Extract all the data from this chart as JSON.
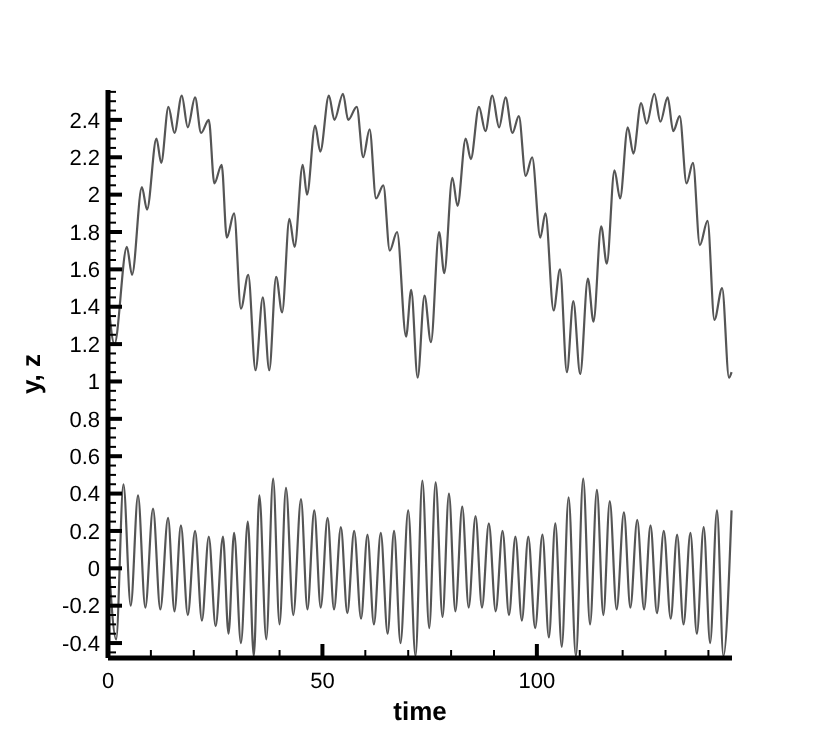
{
  "chart_data": {
    "type": "line",
    "xlabel": "time",
    "ylabel": "y, z",
    "xlim": [
      0,
      145.5
    ],
    "ylim": [
      -0.48,
      2.56
    ],
    "grid": false,
    "line_style": "solid",
    "xticks": [
      0,
      {
        "value": 10,
        "label": null
      },
      {
        "value": 20,
        "label": null
      },
      {
        "value": 30,
        "label": null
      },
      {
        "value": 40,
        "label": null
      },
      50,
      {
        "value": 60,
        "label": null
      },
      {
        "value": 70,
        "label": null
      },
      {
        "value": 80,
        "label": null
      },
      {
        "value": 90,
        "label": null
      },
      100,
      {
        "value": 110,
        "label": null
      },
      {
        "value": 120,
        "label": null
      },
      {
        "value": 130,
        "label": null
      },
      {
        "value": 140,
        "label": null
      }
    ],
    "yticks": [
      -0.4,
      -0.2,
      0,
      0.2,
      0.4,
      0.6,
      0.8,
      1,
      1.2,
      1.4,
      1.6,
      1.8,
      2,
      2.2,
      2.4,
      {
        "value": -0.45,
        "label": null
      },
      {
        "value": -0.35,
        "label": null
      },
      {
        "value": -0.3,
        "label": null
      },
      {
        "value": -0.25,
        "label": null
      },
      {
        "value": -0.15,
        "label": null
      },
      {
        "value": -0.1,
        "label": null
      },
      {
        "value": -0.05,
        "label": null
      },
      {
        "value": 0.05,
        "label": null
      },
      {
        "value": 0.1,
        "label": null
      },
      {
        "value": 0.15,
        "label": null
      },
      {
        "value": 0.25,
        "label": null
      },
      {
        "value": 0.3,
        "label": null
      },
      {
        "value": 0.35,
        "label": null
      },
      {
        "value": 0.45,
        "label": null
      },
      {
        "value": 0.5,
        "label": null
      },
      {
        "value": 0.55,
        "label": null
      },
      {
        "value": 0.65,
        "label": null
      },
      {
        "value": 0.7,
        "label": null
      },
      {
        "value": 0.75,
        "label": null
      },
      {
        "value": 0.85,
        "label": null
      },
      {
        "value": 0.9,
        "label": null
      },
      {
        "value": 0.95,
        "label": null
      },
      {
        "value": 1.05,
        "label": null
      },
      {
        "value": 1.1,
        "label": null
      },
      {
        "value": 1.15,
        "label": null
      },
      {
        "value": 1.25,
        "label": null
      },
      {
        "value": 1.3,
        "label": null
      },
      {
        "value": 1.35,
        "label": null
      },
      {
        "value": 1.45,
        "label": null
      },
      {
        "value": 1.5,
        "label": null
      },
      {
        "value": 1.55,
        "label": null
      },
      {
        "value": 1.65,
        "label": null
      },
      {
        "value": 1.7,
        "label": null
      },
      {
        "value": 1.75,
        "label": null
      },
      {
        "value": 1.85,
        "label": null
      },
      {
        "value": 1.9,
        "label": null
      },
      {
        "value": 1.95,
        "label": null
      },
      {
        "value": 2.05,
        "label": null
      },
      {
        "value": 2.1,
        "label": null
      },
      {
        "value": 2.15,
        "label": null
      },
      {
        "value": 2.25,
        "label": null
      },
      {
        "value": 2.3,
        "label": null
      },
      {
        "value": 2.35,
        "label": null
      },
      {
        "value": 2.45,
        "label": null
      },
      {
        "value": 2.5,
        "label": null
      },
      {
        "value": 2.55,
        "label": null
      }
    ],
    "series": [
      {
        "color": "#555555",
        "x": [
          0,
          1.5,
          4.4,
          5.6,
          7.9,
          9.1,
          11.3,
          12.4,
          14.1,
          15.5,
          17.2,
          18.6,
          20.3,
          21.7,
          23.5,
          24.8,
          26.5,
          27.7,
          29.4,
          31,
          32.7,
          34.4,
          36.1,
          37.6,
          39.2,
          40.6,
          42.3,
          43.5,
          45.4,
          46.4,
          48.3,
          49.5,
          51.5,
          52.8,
          54.8,
          56,
          58,
          59.5,
          61,
          62.5,
          64.2,
          65.7,
          67.4,
          69.5,
          70.7,
          72.2,
          73.8,
          75.3,
          77.2,
          78.4,
          80.3,
          81.5,
          83.4,
          84.6,
          86.5,
          88,
          89.6,
          91.2,
          92.7,
          94.3,
          95.8,
          97.4,
          98.9,
          100.8,
          102,
          103.9,
          105.4,
          107,
          108.5,
          110.1,
          111.9,
          113.2,
          115,
          116.3,
          118.1,
          119.4,
          121.2,
          122.5,
          124.3,
          125.6,
          127.4,
          128.8,
          130.5,
          131.8,
          133.3,
          134.9,
          136.4,
          138,
          139.8,
          141.4,
          143.2,
          144.8,
          145.4
        ],
        "values": [
          1.45,
          1.2,
          1.72,
          1.57,
          2.04,
          1.92,
          2.3,
          2.17,
          2.47,
          2.33,
          2.53,
          2.36,
          2.52,
          2.33,
          2.4,
          2.06,
          2.16,
          1.77,
          1.9,
          1.39,
          1.57,
          1.06,
          1.45,
          1.06,
          1.56,
          1.37,
          1.87,
          1.72,
          2.16,
          2,
          2.37,
          2.23,
          2.53,
          2.4,
          2.54,
          2.4,
          2.47,
          2.2,
          2.35,
          1.98,
          2.05,
          1.7,
          1.8,
          1.24,
          1.49,
          1.02,
          1.46,
          1.21,
          1.8,
          1.58,
          2.09,
          1.94,
          2.3,
          2.19,
          2.47,
          2.34,
          2.53,
          2.36,
          2.52,
          2.33,
          2.42,
          2.1,
          2.2,
          1.77,
          1.9,
          1.38,
          1.6,
          1.05,
          1.43,
          1.04,
          1.55,
          1.32,
          1.83,
          1.63,
          2.13,
          1.98,
          2.36,
          2.22,
          2.49,
          2.38,
          2.54,
          2.39,
          2.52,
          2.34,
          2.42,
          2.06,
          2.17,
          1.73,
          1.86,
          1.33,
          1.5,
          1.02,
          1.05
        ]
      },
      {
        "color": "#555555",
        "x": [
          0,
          1.9,
          3.6,
          5.3,
          7,
          8.7,
          10.5,
          12.2,
          14,
          15.5,
          17,
          18.6,
          20.3,
          21.9,
          23.5,
          25.1,
          26.8,
          28.1,
          29.4,
          31,
          32.6,
          34,
          35.3,
          36.9,
          38.5,
          40,
          41.5,
          43.2,
          45,
          46.5,
          48.1,
          49.6,
          51.2,
          52.7,
          54.3,
          55.8,
          57.4,
          59,
          60.5,
          62,
          63.6,
          65.2,
          66.7,
          68.2,
          70,
          71.7,
          73.3,
          74.9,
          76.4,
          78,
          79.5,
          81,
          82.6,
          84.1,
          85.7,
          87.2,
          88.8,
          90.4,
          92,
          93.5,
          95,
          96.5,
          98,
          99.6,
          101.3,
          102.8,
          104.3,
          105.8,
          107.4,
          109.1,
          110.8,
          112.4,
          114,
          115.5,
          117,
          118.6,
          120.3,
          121.8,
          123.4,
          125,
          126.5,
          128,
          129.6,
          131.2,
          132.7,
          134.2,
          135.8,
          137.3,
          138.9,
          140.4,
          142,
          143.5,
          145.4
        ],
        "values": [
          0.1,
          -0.38,
          0.45,
          -0.2,
          0.39,
          -0.21,
          0.32,
          -0.22,
          0.27,
          -0.23,
          0.23,
          -0.25,
          0.2,
          -0.28,
          0.17,
          -0.31,
          0.17,
          -0.35,
          0.19,
          -0.4,
          0.25,
          -0.47,
          0.39,
          -0.38,
          0.48,
          -0.3,
          0.43,
          -0.25,
          0.37,
          -0.22,
          0.31,
          -0.21,
          0.27,
          -0.22,
          0.22,
          -0.24,
          0.2,
          -0.27,
          0.18,
          -0.3,
          0.19,
          -0.35,
          0.2,
          -0.4,
          0.31,
          -0.47,
          0.47,
          -0.32,
          0.46,
          -0.26,
          0.4,
          -0.23,
          0.33,
          -0.21,
          0.28,
          -0.21,
          0.24,
          -0.23,
          0.2,
          -0.25,
          0.17,
          -0.28,
          0.17,
          -0.32,
          0.18,
          -0.37,
          0.24,
          -0.42,
          0.38,
          -0.47,
          0.48,
          -0.3,
          0.42,
          -0.25,
          0.36,
          -0.22,
          0.3,
          -0.21,
          0.26,
          -0.22,
          0.23,
          -0.24,
          0.2,
          -0.27,
          0.18,
          -0.3,
          0.19,
          -0.35,
          0.22,
          -0.4,
          0.31,
          -0.47,
          0.31
        ]
      }
    ]
  }
}
